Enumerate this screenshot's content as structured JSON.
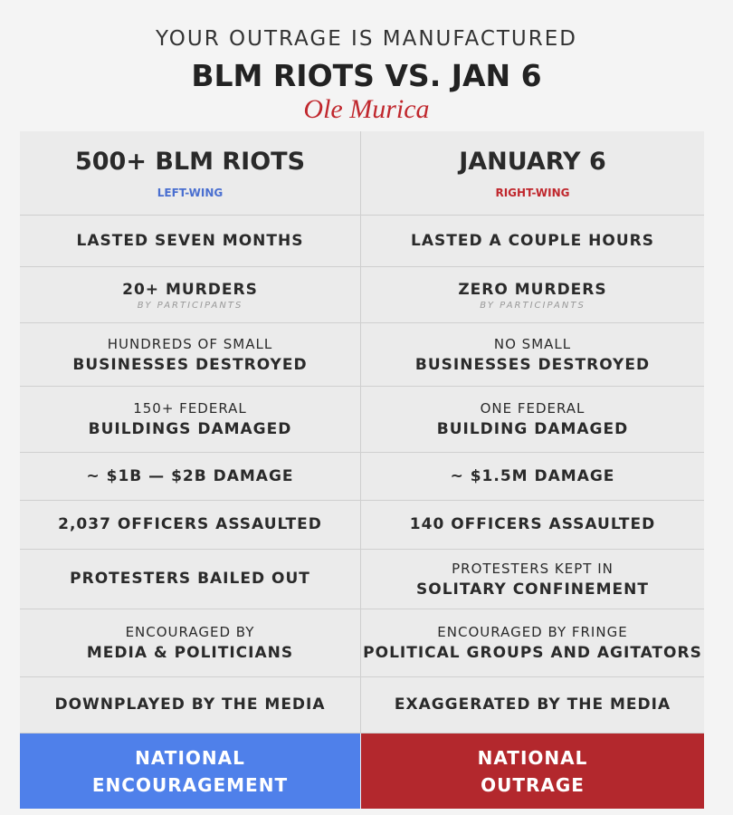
{
  "header": {
    "title": "YOUR OUTRAGE IS MANUFACTURED",
    "headline": "BLM RIOTS VS. JAN 6",
    "brand": "Ole Murica"
  },
  "columns": [
    {
      "title": "500+ BLM RIOTS",
      "tag": "LEFT-WING"
    },
    {
      "title": "JANUARY 6",
      "tag": "RIGHT-WING"
    }
  ],
  "rows": [
    [
      {
        "lines": [
          "LASTED SEVEN MONTHS"
        ]
      },
      {
        "lines": [
          "LASTED A COUPLE HOURS"
        ]
      }
    ],
    [
      {
        "lines": [
          "20+ MURDERS"
        ],
        "note": "BY PARTICIPANTS"
      },
      {
        "lines": [
          "ZERO MURDERS"
        ],
        "note": "BY PARTICIPANTS"
      }
    ],
    [
      {
        "lines": [
          "HUNDREDS OF SMALL",
          "BUSINESSES DESTROYED"
        ]
      },
      {
        "lines": [
          "NO SMALL",
          "BUSINESSES DESTROYED"
        ]
      }
    ],
    [
      {
        "lines": [
          "150+ FEDERAL",
          "BUILDINGS DAMAGED"
        ]
      },
      {
        "lines": [
          "ONE FEDERAL",
          "BUILDING DAMAGED"
        ]
      }
    ],
    [
      {
        "lines": [
          "~ $1B — $2B DAMAGE"
        ]
      },
      {
        "lines": [
          "~ $1.5M DAMAGE"
        ]
      }
    ],
    [
      {
        "lines": [
          "2,037 OFFICERS ASSAULTED"
        ]
      },
      {
        "lines": [
          "140 OFFICERS ASSAULTED"
        ]
      }
    ],
    [
      {
        "lines": [
          "PROTESTERS BAILED OUT"
        ]
      },
      {
        "lines": [
          "PROTESTERS KEPT IN",
          "SOLITARY CONFINEMENT"
        ]
      }
    ],
    [
      {
        "lines": [
          "ENCOURAGED BY",
          "MEDIA & POLITICIANS"
        ]
      },
      {
        "lines": [
          "ENCOURAGED BY FRINGE",
          "POLITICAL GROUPS AND AGITATORS"
        ]
      }
    ],
    [
      {
        "lines": [
          "DOWNPLAYED BY THE MEDIA"
        ]
      },
      {
        "lines": [
          "EXAGGERATED BY THE MEDIA"
        ]
      }
    ]
  ],
  "footer": [
    {
      "lines": [
        "NATIONAL",
        "ENCOURAGEMENT"
      ]
    },
    {
      "lines": [
        "NATIONAL",
        "OUTRAGE"
      ]
    }
  ]
}
